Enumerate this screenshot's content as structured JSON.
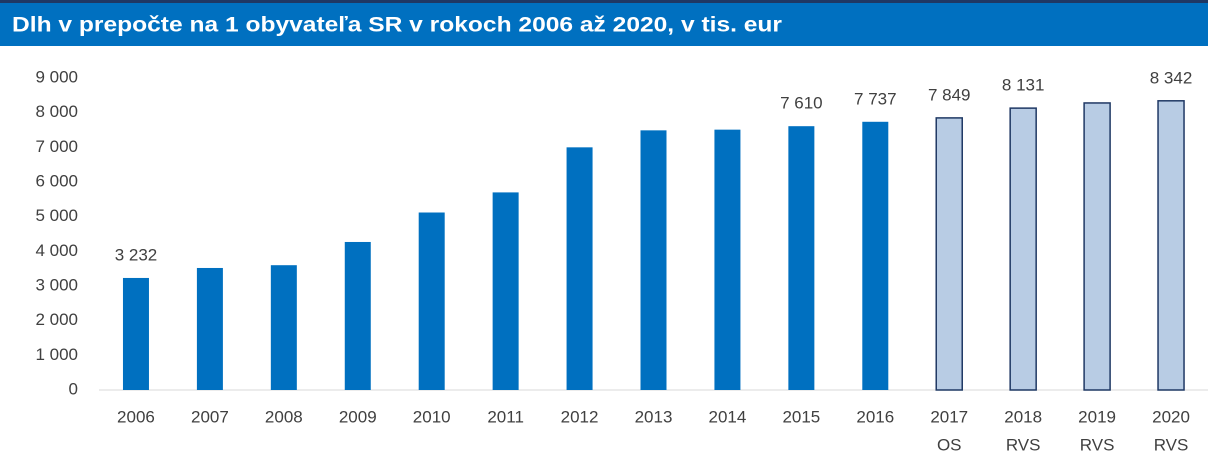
{
  "chart_data": {
    "type": "bar",
    "title": "Dlh v prepočte na 1 obyvateľa SR v rokoch 2006 až 2020, v tis. eur",
    "categories": [
      "2006",
      "2007",
      "2008",
      "2009",
      "2010",
      "2011",
      "2012",
      "2013",
      "2014",
      "2015",
      "2016",
      "2017",
      "2018",
      "2019",
      "2020"
    ],
    "sublabels": [
      null,
      null,
      null,
      null,
      null,
      null,
      null,
      null,
      null,
      null,
      null,
      "OS",
      "RVS",
      "RVS",
      "RVS"
    ],
    "values": [
      3232,
      3520,
      3600,
      4270,
      5120,
      5700,
      7000,
      7490,
      7510,
      7610,
      7737,
      7849,
      8131,
      8280,
      8342
    ],
    "value_labels": [
      "3 232",
      null,
      null,
      null,
      null,
      null,
      null,
      null,
      null,
      "7 610",
      "7 737",
      "7 849",
      "8 131",
      null,
      "8 342"
    ],
    "colors": [
      "#0070c0",
      "#0070c0",
      "#0070c0",
      "#0070c0",
      "#0070c0",
      "#0070c0",
      "#0070c0",
      "#0070c0",
      "#0070c0",
      "#0070c0",
      "#0070c0",
      "#b8cce4",
      "#b8cce4",
      "#b8cce4",
      "#b8cce4"
    ],
    "edge_colors": [
      null,
      null,
      null,
      null,
      null,
      null,
      null,
      null,
      null,
      null,
      null,
      "#1f3864",
      "#1f3864",
      "#1f3864",
      "#1f3864"
    ],
    "ylim": [
      0,
      9000
    ],
    "yticks": [
      0,
      {
        "value": 1000,
        "label": "1 000"
      },
      {
        "value": 2000,
        "label": "2 000"
      },
      {
        "value": 3000,
        "label": "3 000"
      },
      {
        "value": 4000,
        "label": "4 000"
      },
      {
        "value": 5000,
        "label": "5 000"
      },
      {
        "value": 6000,
        "label": "6 000"
      },
      {
        "value": 7000,
        "label": "7 000"
      },
      {
        "value": 8000,
        "label": "8 000"
      },
      {
        "value": 9000,
        "label": "9 000"
      }
    ],
    "grid": false
  }
}
